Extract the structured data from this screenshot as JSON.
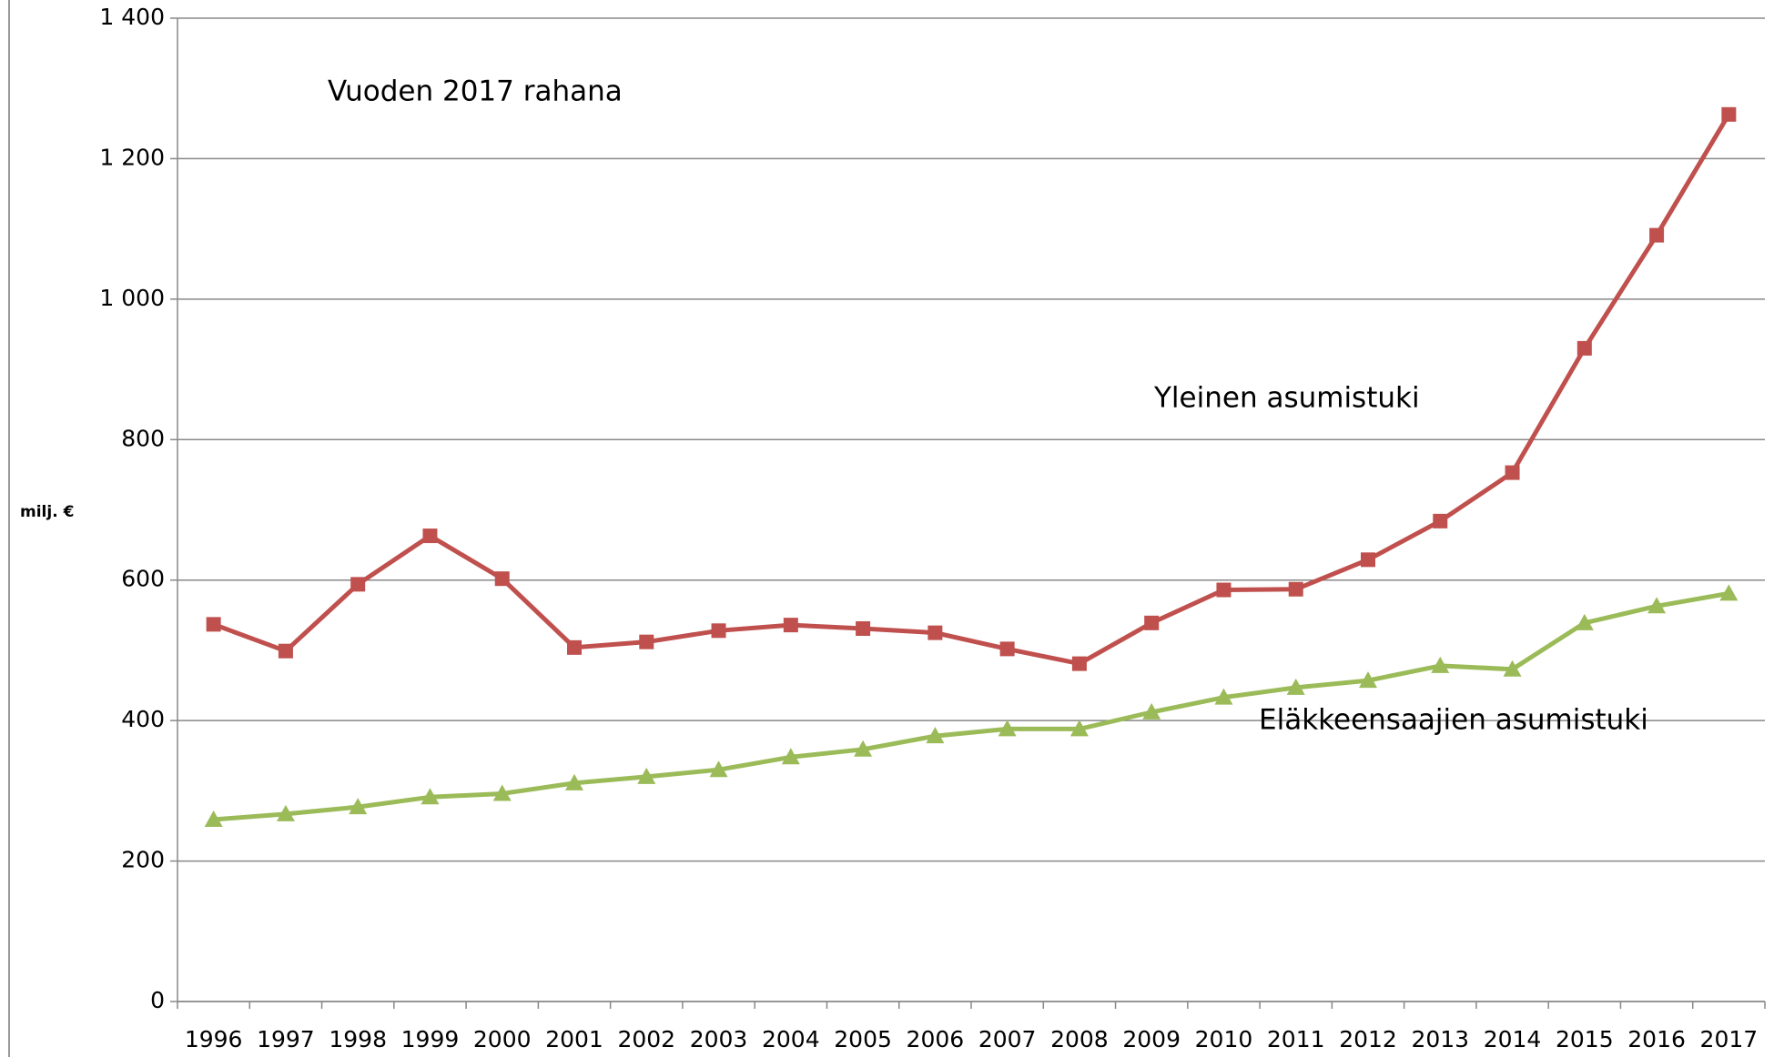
{
  "chart_data": {
    "type": "line",
    "annotation": "Vuoden 2017 rahana",
    "y_label": "milj. €",
    "categories": [
      "1996",
      "1997",
      "1998",
      "1999",
      "2000",
      "2001",
      "2002",
      "2003",
      "2004",
      "2005",
      "2006",
      "2007",
      "2008",
      "2009",
      "2010",
      "2011",
      "2012",
      "2013",
      "2014",
      "2015",
      "2016",
      "2017"
    ],
    "series": [
      {
        "name": "Yleinen asumistuki",
        "color": "#c0504d",
        "marker": "square",
        "values": [
          537,
          499,
          594,
          663,
          602,
          504,
          512,
          528,
          536,
          531,
          525,
          502,
          481,
          539,
          586,
          587,
          629,
          684,
          753,
          930,
          1091,
          1263
        ]
      },
      {
        "name": "Eläkkeensaajien asumistuki",
        "color": "#9bbb59",
        "marker": "triangle",
        "values": [
          259,
          267,
          277,
          291,
          296,
          311,
          320,
          330,
          348,
          359,
          378,
          388,
          388,
          412,
          433,
          447,
          457,
          478,
          473,
          539,
          563,
          581
        ]
      }
    ],
    "ylim": [
      0,
      1400
    ],
    "yticks": [
      0,
      200,
      400,
      600,
      800,
      {
        "value": 1000,
        "label": "1 000"
      },
      {
        "value": 1200,
        "label": "1 200"
      },
      {
        "value": 1400,
        "label": "1 400"
      }
    ],
    "grid": true
  }
}
